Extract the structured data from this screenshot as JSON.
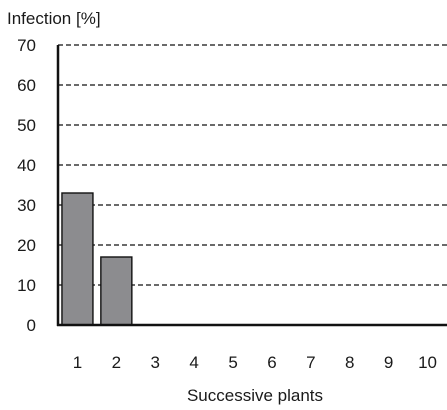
{
  "chart_data": {
    "type": "bar",
    "ylabel": "Infection [%]",
    "xlabel": "Successive plants",
    "categories": [
      "1",
      "2",
      "3",
      "4",
      "5",
      "6",
      "7",
      "8",
      "9",
      "10"
    ],
    "values": [
      33,
      17,
      0,
      0,
      0,
      0,
      0,
      0,
      0,
      0
    ],
    "ylim": [
      0,
      70
    ],
    "yticks": [
      0,
      10,
      20,
      30,
      40,
      50,
      60,
      70
    ],
    "ytick_labels": [
      "0",
      "10",
      "20",
      "30",
      "40",
      "50",
      "60",
      "70"
    ],
    "grid": true,
    "bar_color": "#8c8c8f"
  }
}
